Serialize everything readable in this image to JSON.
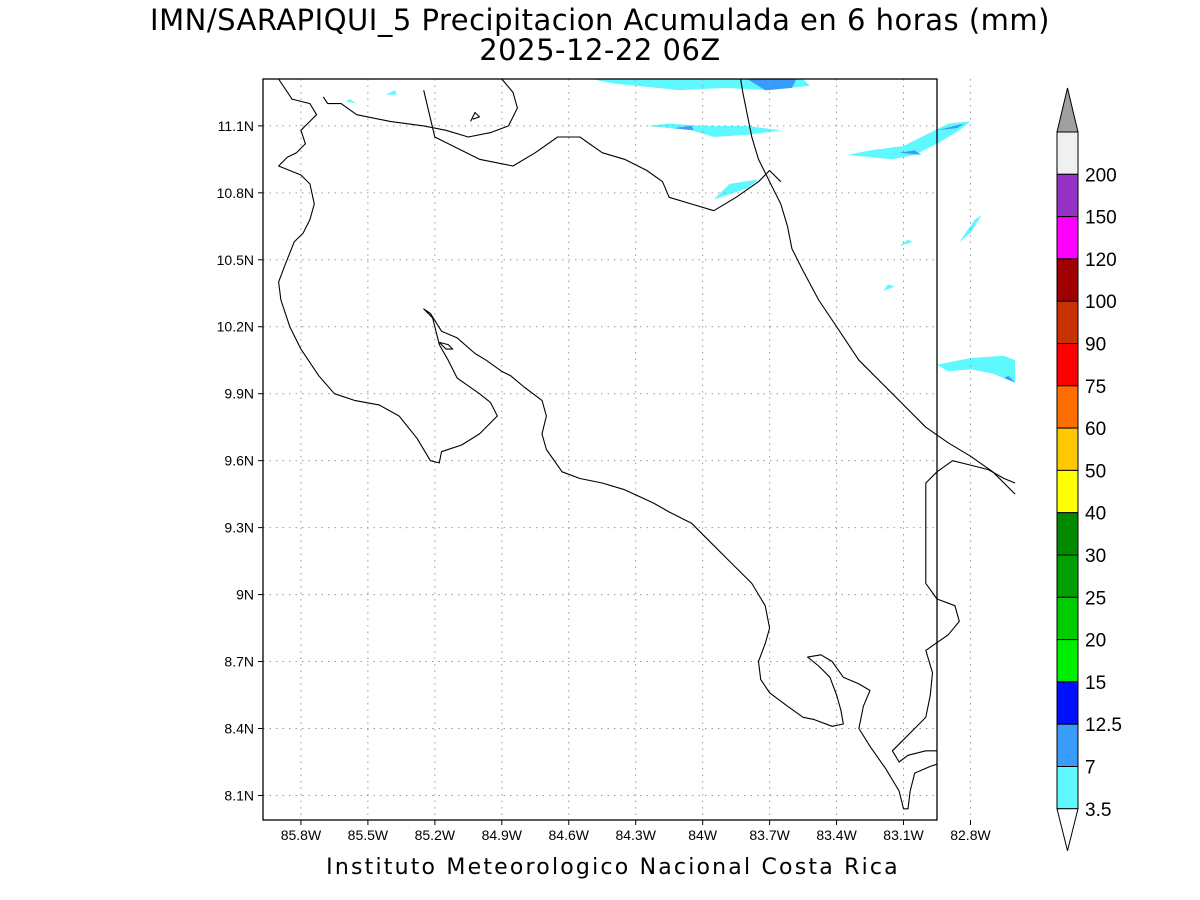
{
  "title_line1": "IMN/SARAPIQUI_5 Precipitacion Acumulada en 6 horas (mm)",
  "title_line2": "2025-12-22 06Z",
  "footer": "Instituto Meteorologico Nacional Costa Rica",
  "map": {
    "lon_range": [
      -85.97,
      -82.95
    ],
    "lat_range": [
      7.99,
      11.31
    ],
    "grid": "dotted",
    "lat_ticks": [
      {
        "value": 11.1,
        "label": "11.1N"
      },
      {
        "value": 10.8,
        "label": "10.8N"
      },
      {
        "value": 10.5,
        "label": "10.5N"
      },
      {
        "value": 10.2,
        "label": "10.2N"
      },
      {
        "value": 9.9,
        "label": "9.9N"
      },
      {
        "value": 9.6,
        "label": "9.6N"
      },
      {
        "value": 9.3,
        "label": "9.3N"
      },
      {
        "value": 9.0,
        "label": "9N"
      },
      {
        "value": 8.7,
        "label": "8.7N"
      },
      {
        "value": 8.4,
        "label": "8.4N"
      },
      {
        "value": 8.1,
        "label": "8.1N"
      }
    ],
    "lon_ticks": [
      {
        "value": -85.8,
        "label": "85.8W"
      },
      {
        "value": -85.5,
        "label": "85.5W"
      },
      {
        "value": -85.2,
        "label": "85.2W"
      },
      {
        "value": -84.9,
        "label": "84.9W"
      },
      {
        "value": -84.6,
        "label": "84.6W"
      },
      {
        "value": -84.3,
        "label": "84.3W"
      },
      {
        "value": -84.0,
        "label": "84W"
      },
      {
        "value": -83.7,
        "label": "83.7W"
      },
      {
        "value": -83.4,
        "label": "83.4W"
      },
      {
        "value": -83.1,
        "label": "83.1W"
      },
      {
        "value": -82.8,
        "label": "82.8W"
      }
    ],
    "coastline": [
      [
        [
          -85.9,
          11.31
        ],
        [
          -85.84,
          11.22
        ],
        [
          -85.76,
          11.2
        ],
        [
          -85.73,
          11.15
        ],
        [
          -85.76,
          11.12
        ],
        [
          -85.8,
          11.08
        ],
        [
          -85.78,
          11.02
        ],
        [
          -85.82,
          10.98
        ],
        [
          -85.86,
          10.96
        ],
        [
          -85.9,
          10.92
        ],
        [
          -85.8,
          10.88
        ],
        [
          -85.76,
          10.84
        ],
        [
          -85.74,
          10.75
        ],
        [
          -85.76,
          10.68
        ],
        [
          -85.79,
          10.62
        ],
        [
          -85.83,
          10.58
        ],
        [
          -85.85,
          10.53
        ],
        [
          -85.87,
          10.48
        ],
        [
          -85.9,
          10.4
        ],
        [
          -85.89,
          10.32
        ],
        [
          -85.85,
          10.2
        ],
        [
          -85.8,
          10.1
        ],
        [
          -85.72,
          9.98
        ],
        [
          -85.65,
          9.9
        ],
        [
          -85.56,
          9.87
        ],
        [
          -85.45,
          9.85
        ],
        [
          -85.36,
          9.8
        ],
        [
          -85.28,
          9.7
        ],
        [
          -85.22,
          9.6
        ],
        [
          -85.18,
          9.59
        ],
        [
          -85.17,
          9.64
        ],
        [
          -85.08,
          9.67
        ],
        [
          -85.0,
          9.72
        ],
        [
          -84.92,
          9.8
        ],
        [
          -84.95,
          9.86
        ],
        [
          -85.0,
          9.9
        ],
        [
          -85.1,
          9.97
        ],
        [
          -85.14,
          10.05
        ],
        [
          -85.18,
          10.12
        ],
        [
          -85.21,
          10.24
        ],
        [
          -85.25,
          10.28
        ],
        [
          -85.22,
          10.26
        ],
        [
          -85.17,
          10.18
        ],
        [
          -85.1,
          10.15
        ],
        [
          -85.02,
          10.08
        ],
        [
          -84.97,
          10.05
        ],
        [
          -84.9,
          10.0
        ],
        [
          -84.86,
          9.98
        ],
        [
          -84.8,
          9.93
        ],
        [
          -84.72,
          9.87
        ],
        [
          -84.7,
          9.8
        ],
        [
          -84.72,
          9.72
        ],
        [
          -84.7,
          9.65
        ],
        [
          -84.63,
          9.55
        ],
        [
          -84.55,
          9.52
        ],
        [
          -84.45,
          9.5
        ],
        [
          -84.35,
          9.47
        ],
        [
          -84.22,
          9.41
        ],
        [
          -84.15,
          9.37
        ],
        [
          -84.05,
          9.32
        ],
        [
          -83.98,
          9.25
        ],
        [
          -83.88,
          9.15
        ],
        [
          -83.78,
          9.05
        ],
        [
          -83.72,
          8.95
        ],
        [
          -83.7,
          8.85
        ],
        [
          -83.72,
          8.78
        ],
        [
          -83.75,
          8.7
        ],
        [
          -83.74,
          8.62
        ],
        [
          -83.7,
          8.56
        ],
        [
          -83.62,
          8.5
        ],
        [
          -83.55,
          8.45
        ],
        [
          -83.5,
          8.44
        ],
        [
          -83.42,
          8.41
        ],
        [
          -83.37,
          8.42
        ],
        [
          -83.38,
          8.48
        ],
        [
          -83.4,
          8.55
        ],
        [
          -83.43,
          8.63
        ],
        [
          -83.48,
          8.68
        ],
        [
          -83.53,
          8.72
        ],
        [
          -83.47,
          8.73
        ],
        [
          -83.42,
          8.7
        ],
        [
          -83.37,
          8.63
        ],
        [
          -83.3,
          8.6
        ],
        [
          -83.25,
          8.57
        ],
        [
          -83.28,
          8.5
        ],
        [
          -83.3,
          8.4
        ],
        [
          -83.25,
          8.32
        ],
        [
          -83.18,
          8.22
        ],
        [
          -83.12,
          8.12
        ],
        [
          -83.1,
          8.04
        ],
        [
          -83.08,
          8.04
        ],
        [
          -83.07,
          8.12
        ],
        [
          -83.05,
          8.2
        ],
        [
          -82.98,
          8.23
        ],
        [
          -82.95,
          8.24
        ]
      ],
      [
        [
          -82.95,
          8.3
        ],
        [
          -83.0,
          8.3
        ],
        [
          -83.08,
          8.28
        ],
        [
          -83.12,
          8.25
        ],
        [
          -83.15,
          8.3
        ],
        [
          -83.1,
          8.35
        ],
        [
          -83.05,
          8.4
        ],
        [
          -83.0,
          8.45
        ],
        [
          -82.98,
          8.55
        ],
        [
          -82.97,
          8.65
        ],
        [
          -83.0,
          8.75
        ],
        [
          -82.9,
          8.82
        ],
        [
          -82.85,
          8.88
        ],
        [
          -82.87,
          8.95
        ],
        [
          -82.95,
          8.98
        ],
        [
          -83.0,
          9.05
        ],
        [
          -83.0,
          9.4
        ],
        [
          -83.0,
          9.5
        ],
        [
          -82.95,
          9.55
        ],
        [
          -82.88,
          9.6
        ],
        [
          -82.8,
          9.58
        ],
        [
          -82.72,
          9.56
        ],
        [
          -82.65,
          9.52
        ],
        [
          -82.6,
          9.5
        ]
      ],
      [
        [
          -82.6,
          9.45
        ],
        [
          -82.7,
          9.55
        ],
        [
          -82.8,
          9.62
        ],
        [
          -82.9,
          9.68
        ],
        [
          -83.0,
          9.75
        ],
        [
          -83.1,
          9.85
        ],
        [
          -83.2,
          9.95
        ],
        [
          -83.3,
          10.05
        ],
        [
          -83.4,
          10.2
        ],
        [
          -83.48,
          10.32
        ],
        [
          -83.55,
          10.45
        ],
        [
          -83.6,
          10.55
        ],
        [
          -83.62,
          10.65
        ],
        [
          -83.65,
          10.75
        ],
        [
          -83.7,
          10.85
        ],
        [
          -83.75,
          10.95
        ],
        [
          -83.78,
          11.05
        ],
        [
          -83.8,
          11.15
        ],
        [
          -83.82,
          11.25
        ],
        [
          -83.83,
          11.31
        ]
      ],
      [
        [
          -84.9,
          11.31
        ],
        [
          -84.85,
          11.25
        ],
        [
          -84.83,
          11.18
        ],
        [
          -84.87,
          11.1
        ],
        [
          -84.95,
          11.07
        ],
        [
          -85.05,
          11.05
        ],
        [
          -85.15,
          11.08
        ],
        [
          -85.25,
          11.1
        ],
        [
          -85.4,
          11.12
        ],
        [
          -85.55,
          11.15
        ],
        [
          -85.62,
          11.2
        ],
        [
          -85.68,
          11.2
        ],
        [
          -85.7,
          11.23
        ]
      ],
      [
        [
          -85.25,
          11.26
        ],
        [
          -85.2,
          11.05
        ],
        [
          -85.0,
          10.95
        ],
        [
          -84.85,
          10.92
        ],
        [
          -84.75,
          10.98
        ],
        [
          -84.65,
          11.05
        ],
        [
          -84.55,
          11.05
        ],
        [
          -84.45,
          10.98
        ],
        [
          -84.35,
          10.95
        ],
        [
          -84.25,
          10.9
        ],
        [
          -84.18,
          10.85
        ],
        [
          -84.15,
          10.78
        ],
        [
          -84.05,
          10.75
        ],
        [
          -83.95,
          10.72
        ],
        [
          -83.85,
          10.78
        ],
        [
          -83.75,
          10.85
        ],
        [
          -83.7,
          10.9
        ],
        [
          -83.65,
          10.85
        ]
      ],
      [
        [
          -85.18,
          10.13
        ],
        [
          -85.14,
          10.12
        ],
        [
          -85.12,
          10.1
        ],
        [
          -85.15,
          10.1
        ],
        [
          -85.18,
          10.13
        ]
      ],
      [
        [
          -85.04,
          11.12
        ],
        [
          -85.02,
          11.16
        ],
        [
          -85.0,
          11.14
        ],
        [
          -85.03,
          11.13
        ]
      ]
    ],
    "precip_patches": [
      {
        "value": 3.5,
        "color": "#5ff8ff",
        "points": [
          [
            -84.5,
            11.31
          ],
          [
            -83.55,
            11.31
          ],
          [
            -83.52,
            11.28
          ],
          [
            -83.7,
            11.26
          ],
          [
            -83.9,
            11.27
          ],
          [
            -84.1,
            11.26
          ],
          [
            -84.4,
            11.29
          ]
        ]
      },
      {
        "value": 7,
        "color": "#3a9cfa",
        "points": [
          [
            -83.8,
            11.31
          ],
          [
            -83.58,
            11.31
          ],
          [
            -83.6,
            11.27
          ],
          [
            -83.72,
            11.26
          ]
        ]
      },
      {
        "value": 3.5,
        "color": "#5ff8ff",
        "points": [
          [
            -84.25,
            11.1
          ],
          [
            -84.05,
            11.08
          ],
          [
            -83.95,
            11.05
          ],
          [
            -83.8,
            11.06
          ],
          [
            -83.65,
            11.08
          ],
          [
            -83.8,
            11.1
          ],
          [
            -84.0,
            11.1
          ],
          [
            -84.15,
            11.11
          ]
        ]
      },
      {
        "value": 7,
        "color": "#3a9cfa",
        "points": [
          [
            -84.13,
            11.09
          ],
          [
            -84.04,
            11.08
          ],
          [
            -84.05,
            11.1
          ]
        ]
      },
      {
        "value": 3.5,
        "color": "#5ff8ff",
        "points": [
          [
            -83.35,
            10.97
          ],
          [
            -83.15,
            10.95
          ],
          [
            -83.05,
            10.97
          ],
          [
            -82.95,
            11.02
          ],
          [
            -82.85,
            11.08
          ],
          [
            -82.8,
            11.12
          ],
          [
            -82.9,
            11.11
          ],
          [
            -83.0,
            11.06
          ],
          [
            -83.1,
            11.01
          ],
          [
            -83.25,
            10.99
          ]
        ]
      },
      {
        "value": 7,
        "color": "#3a9cfa",
        "points": [
          [
            -83.12,
            10.98
          ],
          [
            -83.02,
            10.97
          ],
          [
            -83.05,
            10.99
          ]
        ]
      },
      {
        "value": 7,
        "color": "#3a9cfa",
        "points": [
          [
            -82.95,
            11.08
          ],
          [
            -82.83,
            11.11
          ],
          [
            -82.86,
            11.09
          ]
        ]
      },
      {
        "value": 3.5,
        "color": "#5ff8ff",
        "points": [
          [
            -83.95,
            10.77
          ],
          [
            -83.8,
            10.82
          ],
          [
            -83.75,
            10.86
          ],
          [
            -83.88,
            10.84
          ]
        ]
      },
      {
        "value": 3.5,
        "color": "#5ff8ff",
        "points": [
          [
            -82.85,
            10.58
          ],
          [
            -82.78,
            10.68
          ],
          [
            -82.75,
            10.7
          ],
          [
            -82.8,
            10.62
          ]
        ]
      },
      {
        "value": 3.5,
        "color": "#5ff8ff",
        "points": [
          [
            -83.12,
            10.56
          ],
          [
            -83.06,
            10.58
          ],
          [
            -83.08,
            10.59
          ]
        ]
      },
      {
        "value": 3.5,
        "color": "#5ff8ff",
        "points": [
          [
            -83.19,
            10.36
          ],
          [
            -83.14,
            10.38
          ],
          [
            -83.17,
            10.39
          ]
        ]
      },
      {
        "value": 3.5,
        "color": "#5ff8ff",
        "points": [
          [
            -82.95,
            10.03
          ],
          [
            -82.8,
            10.06
          ],
          [
            -82.65,
            10.07
          ],
          [
            -82.6,
            10.05
          ],
          [
            -82.6,
            9.95
          ],
          [
            -82.7,
            9.99
          ],
          [
            -82.8,
            10.01
          ],
          [
            -82.9,
            10.0
          ]
        ]
      },
      {
        "value": 7,
        "color": "#3a9cfa",
        "points": [
          [
            -82.6,
            9.95
          ],
          [
            -82.63,
            9.98
          ],
          [
            -82.65,
            9.97
          ]
        ]
      },
      {
        "value": 3.5,
        "color": "#5ff8ff",
        "points": [
          [
            -85.42,
            11.24
          ],
          [
            -85.37,
            11.24
          ],
          [
            -85.38,
            11.26
          ]
        ]
      },
      {
        "value": 3.5,
        "color": "#5ff8ff",
        "points": [
          [
            -85.6,
            11.21
          ],
          [
            -85.55,
            11.2
          ],
          [
            -85.58,
            11.22
          ]
        ]
      }
    ]
  },
  "colorbar": {
    "levels": [
      {
        "label": "3.5",
        "color": "#5ff8ff"
      },
      {
        "label": "7",
        "color": "#3a9cfa"
      },
      {
        "label": "12.5",
        "color": "#0010ff"
      },
      {
        "label": "15",
        "color": "#00ee00"
      },
      {
        "label": "20",
        "color": "#00cc00"
      },
      {
        "label": "25",
        "color": "#00a000"
      },
      {
        "label": "30",
        "color": "#008a00"
      },
      {
        "label": "40",
        "color": "#ffff00"
      },
      {
        "label": "50",
        "color": "#ffc800"
      },
      {
        "label": "60",
        "color": "#ff6e00"
      },
      {
        "label": "75",
        "color": "#ff0000"
      },
      {
        "label": "90",
        "color": "#c83200"
      },
      {
        "label": "100",
        "color": "#a00000"
      },
      {
        "label": "120",
        "color": "#ff00ff"
      },
      {
        "label": "150",
        "color": "#9632c8"
      },
      {
        "label": "200",
        "color": "#f0f0f0"
      }
    ],
    "lower_end_color": "#ffffff",
    "upper_end_color": "#a0a0a0",
    "segment_colors": [
      "#5ff8ff",
      "#3a9cfa",
      "#0010ff",
      "#00ee00",
      "#00cc00",
      "#00a000",
      "#008a00",
      "#ffff00",
      "#ffc800",
      "#ff6e00",
      "#ff0000",
      "#c83200",
      "#a00000",
      "#ff00ff",
      "#9632c8",
      "#f0f0f0"
    ]
  }
}
